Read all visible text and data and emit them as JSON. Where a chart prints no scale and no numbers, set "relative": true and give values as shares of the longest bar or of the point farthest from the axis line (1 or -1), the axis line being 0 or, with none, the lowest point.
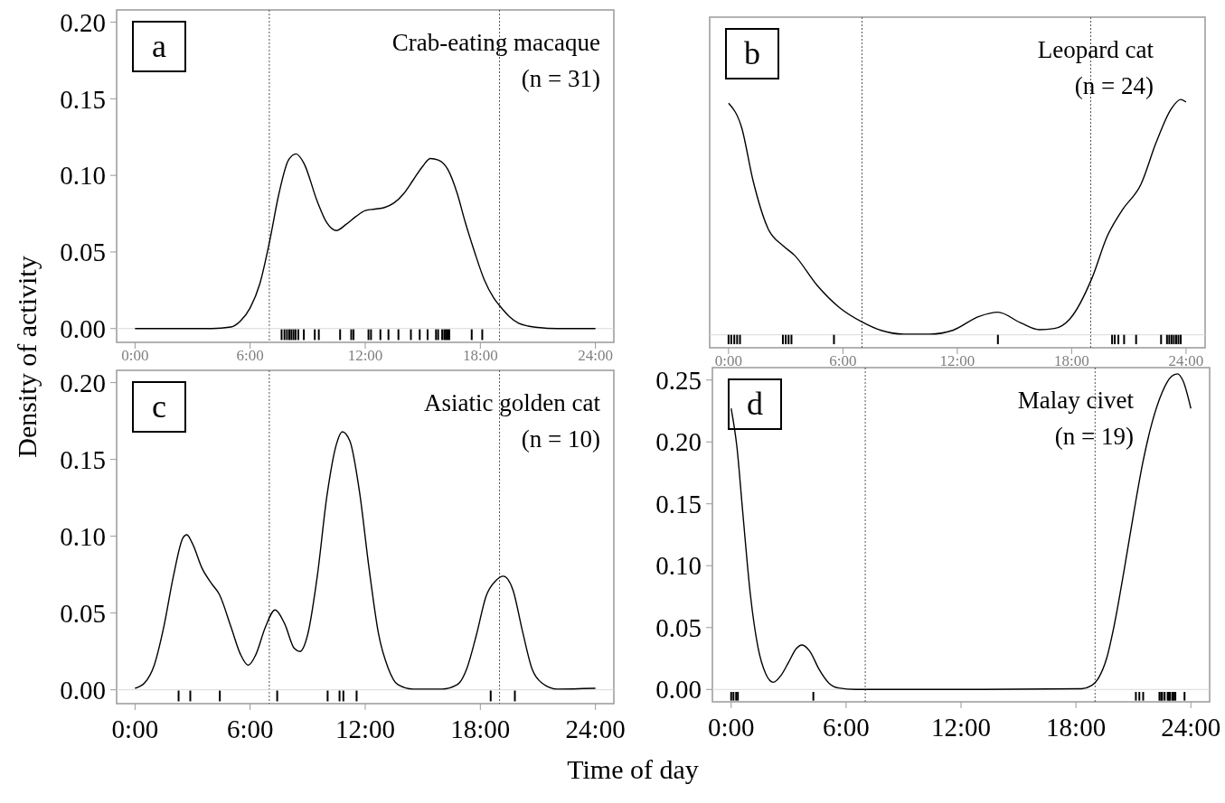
{
  "chart_data": [
    {
      "type": "line",
      "xlabel": "Time of day",
      "ylabel": "Density of activity",
      "annotations": [
        "a",
        "Crab-eating macaque",
        "(n = 31)"
      ],
      "xlim": [
        -0.96,
        24.96
      ],
      "ylim": [
        -0.009,
        0.208
      ],
      "xticks": [
        {
          "value": 0,
          "label": "0:00"
        },
        {
          "value": 6,
          "label": "6:00"
        },
        {
          "value": 12,
          "label": "12:00"
        },
        {
          "value": 18,
          "label": "18:00"
        },
        {
          "value": 24,
          "label": "24:00"
        }
      ],
      "yticks": [
        {
          "value": 0,
          "label": "0.00"
        },
        {
          "value": 0.05,
          "label": "0.05"
        },
        {
          "value": 0.1,
          "label": "0.10"
        },
        {
          "value": 0.15,
          "label": "0.15"
        },
        {
          "value": 0.2,
          "label": "0.20"
        }
      ],
      "ref_lines": [
        {
          "axis": "x",
          "value": 7,
          "color": "#555555",
          "line_style": "dotted"
        },
        {
          "axis": "x",
          "value": 19,
          "color": "#555555",
          "line_style": "dotted"
        },
        {
          "axis": "y",
          "value": 0,
          "color": "#d9d9d9",
          "line_style": "solid"
        }
      ],
      "series": [
        {
          "color": "#000000",
          "x": [
            0,
            4,
            5,
            5.5,
            6,
            6.5,
            7,
            7.5,
            8,
            8.4,
            8.8,
            9.5,
            10,
            10.5,
            11,
            11.5,
            12,
            12.5,
            13,
            13.5,
            14,
            14.5,
            15,
            15.4,
            15.8,
            16.3,
            16.8,
            17.2,
            17.7,
            18.2,
            18.7,
            19,
            19.5,
            20,
            20.5,
            21,
            22,
            24
          ],
          "values": [
            0,
            0,
            0.001,
            0.005,
            0.0135,
            0.029,
            0.056,
            0.088,
            0.11,
            0.114,
            0.108,
            0.083,
            0.069,
            0.064,
            0.068,
            0.073,
            0.077,
            0.078,
            0.079,
            0.082,
            0.088,
            0.097,
            0.106,
            0.111,
            0.11,
            0.104,
            0.088,
            0.07,
            0.05,
            0.032,
            0.02,
            0.015,
            0.008,
            0.0034,
            0.0016,
            0.0007,
            0,
            0
          ]
        },
        {
          "type": "bar",
          "color": "#000000",
          "x": [
            7.64,
            7.79,
            7.92,
            8.04,
            8.15,
            8.26,
            8.37,
            8.51,
            8.8,
            9.37,
            9.58,
            10.69,
            11.27,
            11.39,
            12.17,
            12.3,
            12.79,
            13.21,
            13.73,
            14.38,
            14.84,
            15.25,
            15.69,
            15.8,
            16.01,
            16.12,
            16.2,
            16.29,
            16.38,
            17.55,
            18.1
          ],
          "base": [
            -0.0075,
            -0.0075,
            -0.0075,
            -0.0075,
            -0.0075,
            -0.0075,
            -0.0075,
            -0.0075,
            -0.0075,
            -0.0075,
            -0.0075,
            -0.0075,
            -0.0075,
            -0.0075,
            -0.0075,
            -0.0075,
            -0.0075,
            -0.0075,
            -0.0075,
            -0.0075,
            -0.0075,
            -0.0075,
            -0.0075,
            -0.0075,
            -0.0075,
            -0.0075,
            -0.0075,
            -0.0075,
            -0.0075,
            -0.0075,
            -0.0075
          ],
          "values": [
            0.007,
            0.007,
            0.007,
            0.007,
            0.007,
            0.007,
            0.007,
            0.007,
            0.007,
            0.007,
            0.007,
            0.007,
            0.007,
            0.007,
            0.007,
            0.007,
            0.007,
            0.007,
            0.007,
            0.007,
            0.007,
            0.007,
            0.007,
            0.007,
            0.007,
            0.007,
            0.007,
            0.007,
            0.007,
            0.007,
            0.007
          ]
        }
      ]
    },
    {
      "type": "line",
      "relative": true,
      "annotations": [
        "b",
        "Leopard cat",
        "(n = 24)"
      ],
      "xlim": [
        -0.99,
        25.0
      ],
      "xticks": [
        {
          "value": 0,
          "label": "0:00"
        },
        {
          "value": 6,
          "label": "6:00"
        },
        {
          "value": 12,
          "label": "12:00"
        },
        {
          "value": 18,
          "label": "18:00"
        },
        {
          "value": 24,
          "label": "24:00"
        }
      ],
      "tick_labels": "x",
      "ref_lines": [
        {
          "axis": "x",
          "value": 7,
          "color": "#555555",
          "line_style": "dotted"
        },
        {
          "axis": "x",
          "value": 19,
          "color": "#555555",
          "line_style": "dotted"
        },
        {
          "axis": "y",
          "value": 0,
          "color": "#d9d9d9",
          "line_style": "solid"
        }
      ],
      "series": [
        {
          "color": "#000000",
          "x": [
            0,
            0.69,
            1.28,
            2.08,
            2.87,
            3.46,
            4.64,
            5.83,
            7.02,
            8.0,
            9.19,
            10.57,
            11.76,
            13.14,
            14.13,
            15.32,
            16.3,
            17.1,
            17.9,
            19.07,
            19.86,
            20.65,
            21.64,
            22.43,
            23.22,
            23.72,
            24
          ],
          "values": [
            0.984,
            0.88,
            0.657,
            0.45,
            0.378,
            0.338,
            0.211,
            0.115,
            0.054,
            0.019,
            0.003,
            0.003,
            0.019,
            0.078,
            0.096,
            0.051,
            0.022,
            0.027,
            0.067,
            0.242,
            0.418,
            0.53,
            0.641,
            0.817,
            0.96,
            1,
            0.989
          ]
        },
        {
          "type": "bar",
          "color": "#000000",
          "x": [
            0,
            0.14,
            0.3,
            0.45,
            0.6,
            2.85,
            3.0,
            3.15,
            3.3,
            5.53,
            14.13,
            20.12,
            20.26,
            20.45,
            20.75,
            21.38,
            22.69,
            23.0,
            23.12,
            23.24,
            23.36,
            23.48,
            23.6,
            23.72
          ],
          "values": [
            -0.04,
            -0.04,
            -0.04,
            -0.04,
            -0.04,
            -0.04,
            -0.04,
            -0.04,
            -0.04,
            -0.04,
            -0.04,
            -0.04,
            -0.04,
            -0.04,
            -0.04,
            -0.04,
            -0.04,
            -0.04,
            -0.04,
            -0.04,
            -0.04,
            -0.04,
            -0.04,
            -0.04
          ]
        }
      ]
    },
    {
      "type": "line",
      "annotations": [
        "c",
        "Asiatic golden cat",
        "(n = 10)"
      ],
      "xlim": [
        -0.96,
        24.96
      ],
      "ylim": [
        -0.009,
        0.208
      ],
      "xticks": [
        {
          "value": 0,
          "label": "0:00"
        },
        {
          "value": 6,
          "label": "6:00"
        },
        {
          "value": 12,
          "label": "12:00"
        },
        {
          "value": 18,
          "label": "18:00"
        },
        {
          "value": 24,
          "label": "24:00"
        }
      ],
      "yticks": [
        {
          "value": 0,
          "label": "0.00"
        },
        {
          "value": 0.05,
          "label": "0.05"
        },
        {
          "value": 0.1,
          "label": "0.10"
        },
        {
          "value": 0.15,
          "label": "0.15"
        },
        {
          "value": 0.2,
          "label": "0.20"
        }
      ],
      "ref_lines": [
        {
          "axis": "x",
          "value": 7,
          "color": "#555555",
          "line_style": "dotted"
        },
        {
          "axis": "x",
          "value": 19,
          "color": "#555555",
          "line_style": "dotted"
        },
        {
          "axis": "y",
          "value": 0,
          "color": "#d9d9d9",
          "line_style": "solid"
        }
      ],
      "series": [
        {
          "color": "#000000",
          "x": [
            0,
            0.5,
            1,
            1.5,
            2,
            2.5,
            2.7,
            3,
            3.5,
            4,
            4.4,
            5,
            5.5,
            5.9,
            6.3,
            6.8,
            7.3,
            7.8,
            8.3,
            8.6,
            9,
            9.5,
            10,
            10.5,
            10.8,
            11.2,
            11.7,
            12.2,
            12.7,
            13.2,
            13.7,
            14.5,
            16,
            16.8,
            17.3,
            17.8,
            18.3,
            18.8,
            19.2,
            19.7,
            20.2,
            20.7,
            21.2,
            22,
            24
          ],
          "values": [
            0.001,
            0.0045,
            0.016,
            0.041,
            0.074,
            0.099,
            0.101,
            0.095,
            0.079,
            0.069,
            0.062,
            0.041,
            0.023,
            0.016,
            0.023,
            0.041,
            0.052,
            0.043,
            0.027,
            0.025,
            0.036,
            0.074,
            0.126,
            0.16,
            0.168,
            0.162,
            0.129,
            0.079,
            0.036,
            0.014,
            0.0034,
            0.0005,
            0.0005,
            0.0034,
            0.014,
            0.036,
            0.061,
            0.071,
            0.074,
            0.065,
            0.038,
            0.0135,
            0.0045,
            0.0005,
            0.001
          ]
        },
        {
          "type": "bar",
          "color": "#000000",
          "x": [
            2.27,
            2.88,
            4.42,
            7.41,
            10.04,
            10.66,
            10.86,
            11.55,
            18.54,
            19.8
          ],
          "base": [
            -0.0075,
            -0.0075,
            -0.0075,
            -0.0075,
            -0.0075,
            -0.0075,
            -0.0075,
            -0.0075,
            -0.0075,
            -0.0075
          ],
          "values": [
            0.007,
            0.007,
            0.007,
            0.007,
            0.007,
            0.007,
            0.007,
            0.007,
            0.007,
            0.007
          ]
        }
      ]
    },
    {
      "type": "line",
      "annotations": [
        "d",
        "Malay civet",
        "(n = 19)"
      ],
      "xlim": [
        -0.98,
        24.98
      ],
      "ylim": [
        -0.01,
        0.26
      ],
      "xticks": [
        {
          "value": 0,
          "label": "0:00"
        },
        {
          "value": 6,
          "label": "6:00"
        },
        {
          "value": 12,
          "label": "12:00"
        },
        {
          "value": 18,
          "label": "18:00"
        },
        {
          "value": 24,
          "label": "24:00"
        }
      ],
      "yticks": [
        {
          "value": 0,
          "label": "0.00"
        },
        {
          "value": 0.05,
          "label": "0.05"
        },
        {
          "value": 0.1,
          "label": "0.10"
        },
        {
          "value": 0.15,
          "label": "0.15"
        },
        {
          "value": 0.2,
          "label": "0.20"
        },
        {
          "value": 0.25,
          "label": "0.25"
        }
      ],
      "ref_lines": [
        {
          "axis": "x",
          "value": 7,
          "color": "#555555",
          "line_style": "dotted"
        },
        {
          "axis": "x",
          "value": 19,
          "color": "#555555",
          "line_style": "dotted"
        },
        {
          "axis": "y",
          "value": 0,
          "color": "#d9d9d9",
          "line_style": "solid"
        }
      ],
      "series": [
        {
          "color": "#000000",
          "x": [
            0,
            0.3,
            0.6,
            1,
            1.4,
            1.8,
            2.2,
            2.6,
            3,
            3.4,
            3.7,
            4.1,
            4.6,
            5.1,
            5.6,
            6.5,
            12,
            18.3,
            18.8,
            19.2,
            19.6,
            20,
            20.5,
            21,
            21.5,
            22,
            22.5,
            23,
            23.3,
            23.6,
            24
          ],
          "values": [
            0.227,
            0.196,
            0.144,
            0.077,
            0.034,
            0.0128,
            0.0058,
            0.0113,
            0.022,
            0.033,
            0.036,
            0.031,
            0.016,
            0.0052,
            0.0012,
            0,
            0,
            0.0006,
            0.003,
            0.0098,
            0.025,
            0.052,
            0.095,
            0.141,
            0.184,
            0.217,
            0.24,
            0.253,
            0.255,
            0.249,
            0.227
          ]
        },
        {
          "type": "bar",
          "color": "#000000",
          "x": [
            0,
            0.12,
            0.26,
            0.35,
            4.29,
            21.13,
            21.31,
            21.51,
            22.36,
            22.45,
            22.5,
            22.63,
            22.79,
            22.85,
            22.91,
            23.03,
            23.1,
            23.19,
            23.67
          ],
          "base": [
            -0.009,
            -0.009,
            -0.009,
            -0.009,
            -0.009,
            -0.009,
            -0.009,
            -0.009,
            -0.009,
            -0.009,
            -0.009,
            -0.009,
            -0.009,
            -0.009,
            -0.009,
            -0.009,
            -0.009,
            -0.009,
            -0.009
          ],
          "values": [
            0.007,
            0.007,
            0.007,
            0.007,
            0.007,
            0.007,
            0.007,
            0.007,
            0.007,
            0.007,
            0.007,
            0.007,
            0.007,
            0.007,
            0.007,
            0.007,
            0.007,
            0.007,
            0.007
          ]
        }
      ]
    }
  ]
}
